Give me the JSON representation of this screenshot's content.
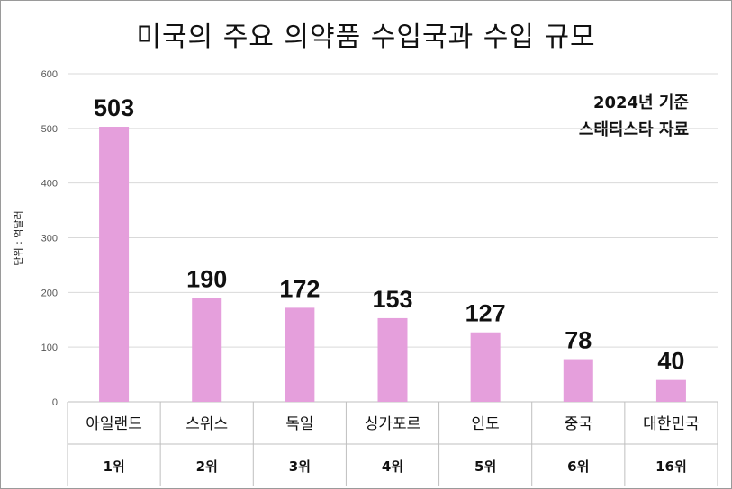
{
  "title": "미국의 주요 의약품 수입국과 수입 규모",
  "note": {
    "year": "2024년 기준",
    "source": "스태티스타 자료"
  },
  "chart_data": {
    "type": "bar",
    "title": "미국의 주요 의약품 수입국과 수입 규모",
    "ylabel": "단위 : 억달러",
    "xlabel": "",
    "categories": [
      "아일랜드",
      "스위스",
      "독일",
      "싱가포르",
      "인도",
      "중국",
      "대한민국"
    ],
    "ranks": [
      "1위",
      "2위",
      "3위",
      "4위",
      "5위",
      "6위",
      "16위"
    ],
    "values": [
      503,
      190,
      172,
      153,
      127,
      78,
      40
    ],
    "ylim": [
      0,
      600
    ],
    "yticks": [
      0,
      100,
      200,
      300,
      400,
      500,
      600
    ],
    "grid": true,
    "bar_color": "#e59fdc"
  }
}
